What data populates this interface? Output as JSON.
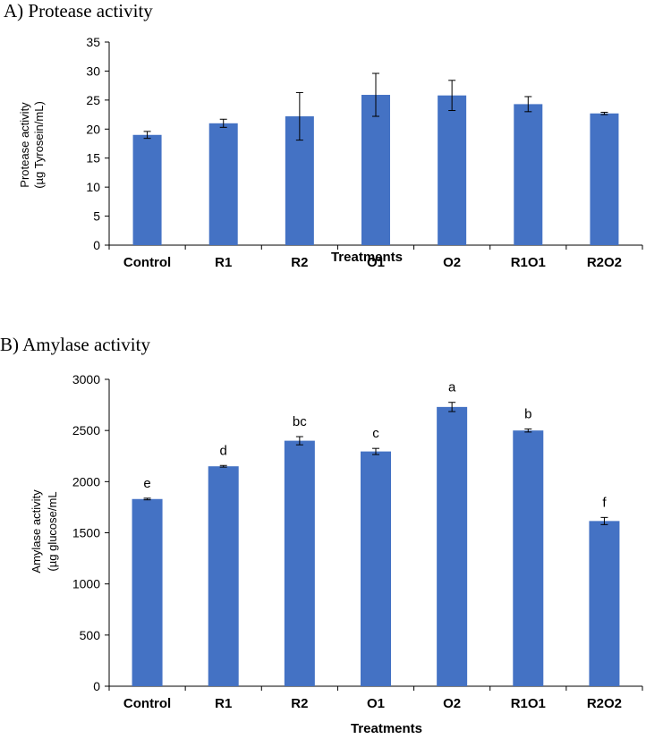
{
  "chart_data": [
    {
      "type": "bar",
      "title": "A) Protease activity",
      "xlabel": "Treatments",
      "ylabel_lines": [
        "Protease activity",
        "(µg Tyrosein/mL)"
      ],
      "categories": [
        "Control",
        "R1",
        "R2",
        "O1",
        "O2",
        "R1O1",
        "R2O2"
      ],
      "values": [
        19.0,
        21.0,
        22.2,
        25.9,
        25.8,
        24.3,
        22.7
      ],
      "error": [
        0.6,
        0.7,
        4.1,
        3.7,
        2.6,
        1.3,
        0.2
      ],
      "ylim": [
        0,
        35
      ],
      "yticks": [
        0,
        5,
        10,
        15,
        20,
        25,
        30,
        35
      ],
      "color": "#4472c4"
    },
    {
      "type": "bar",
      "title": "B) Amylase activity",
      "xlabel": "Treatments",
      "ylabel_lines": [
        "Amylase activity",
        "(µg glucose/mL"
      ],
      "categories": [
        "Control",
        "R1",
        "R2",
        "O1",
        "O2",
        "R1O1",
        "R2O2"
      ],
      "values": [
        1830,
        2150,
        2400,
        2295,
        2730,
        2500,
        1615
      ],
      "error": [
        8,
        8,
        40,
        30,
        45,
        15,
        35
      ],
      "significance": [
        "e",
        "d",
        "bc",
        "c",
        "a",
        "b",
        "f"
      ],
      "ylim": [
        0,
        3000
      ],
      "yticks": [
        0,
        500,
        1000,
        1500,
        2000,
        2500,
        3000
      ],
      "color": "#4472c4"
    }
  ]
}
